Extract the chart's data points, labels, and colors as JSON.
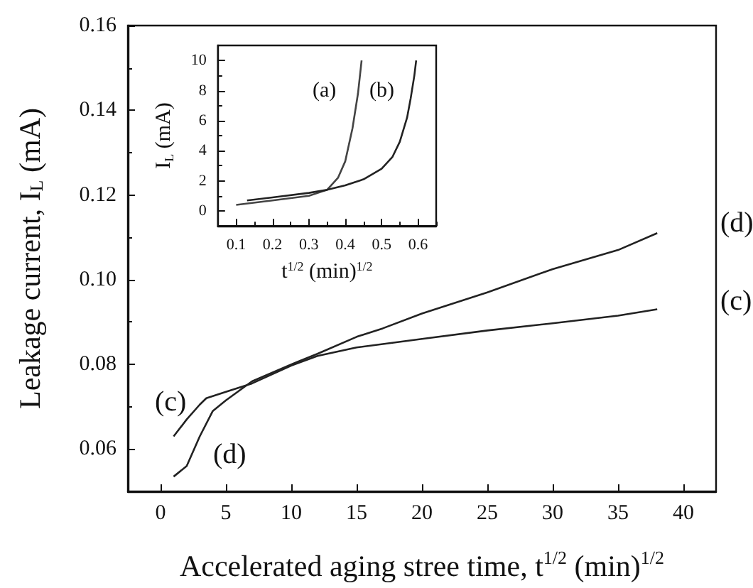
{
  "chart_data": [
    {
      "type": "line",
      "xlabel": "Accelerated aging stree time, t$^{1/2}$ (min)$^{1/2}$",
      "ylabel": "Leakage current, I$_{L}$ (mA)",
      "series": [
        {
          "color": "#222222",
          "x": [
            1,
            2,
            3,
            3.5,
            5,
            7,
            10,
            12,
            15,
            17,
            20,
            25,
            30,
            35,
            38
          ],
          "values": [
            0.063,
            0.067,
            0.0705,
            0.072,
            0.0735,
            0.0755,
            0.0797,
            0.082,
            0.084,
            0.0848,
            0.086,
            0.088,
            0.0897,
            0.0915,
            0.093
          ]
        },
        {
          "color": "#222222",
          "x": [
            1,
            2,
            3,
            4,
            5,
            7,
            10,
            12,
            15,
            17,
            20,
            25,
            30,
            35,
            38
          ],
          "values": [
            0.0535,
            0.056,
            0.063,
            0.069,
            0.0715,
            0.076,
            0.08,
            0.0825,
            0.0865,
            0.0885,
            0.092,
            0.097,
            0.1025,
            0.107,
            0.111
          ]
        }
      ],
      "xlim": [
        -2.5,
        42.5
      ],
      "xticks": [
        0,
        5,
        10,
        15,
        20,
        25,
        30,
        35,
        40
      ],
      "ylim": [
        0.05,
        0.16
      ],
      "yticks": [
        0.06,
        0.08,
        {
          "value": 0.1,
          "label": "0.10"
        },
        0.12,
        0.14,
        0.16
      ],
      "annotations": [
        "(d)",
        "(c)",
        "(c)",
        "(d)"
      ],
      "grid": false,
      "marker": "none",
      "line_style": "solid"
    },
    {
      "type": "line",
      "xlabel": "t$^{1/2}$ (min)$^{1/2}$",
      "ylabel": "I$_{L}$ (mA)",
      "series": [
        {
          "color": "#444444",
          "x": [
            0.1,
            0.2,
            0.3,
            0.35,
            0.38,
            0.4,
            0.42,
            0.435,
            0.445
          ],
          "values": [
            0.4,
            0.7,
            1.0,
            1.4,
            2.2,
            3.3,
            5.5,
            7.8,
            10
          ]
        },
        {
          "color": "#222222",
          "x": [
            0.13,
            0.2,
            0.3,
            0.35,
            0.4,
            0.45,
            0.5,
            0.53,
            0.55,
            0.57,
            0.58,
            0.59,
            0.595
          ],
          "values": [
            0.7,
            0.9,
            1.2,
            1.4,
            1.7,
            2.1,
            2.8,
            3.6,
            4.6,
            6.2,
            7.5,
            9,
            10
          ]
        }
      ],
      "xlim": [
        0.05,
        0.65
      ],
      "xticks": [
        0.1,
        0.2,
        0.3,
        0.4,
        0.5,
        0.6
      ],
      "ylim": [
        -1,
        11
      ],
      "yticks": [
        0,
        2,
        4,
        6,
        8,
        10
      ],
      "annotations": [
        "(a)",
        "(b)"
      ],
      "grid": false,
      "marker": "none",
      "line_style": "solid"
    }
  ]
}
